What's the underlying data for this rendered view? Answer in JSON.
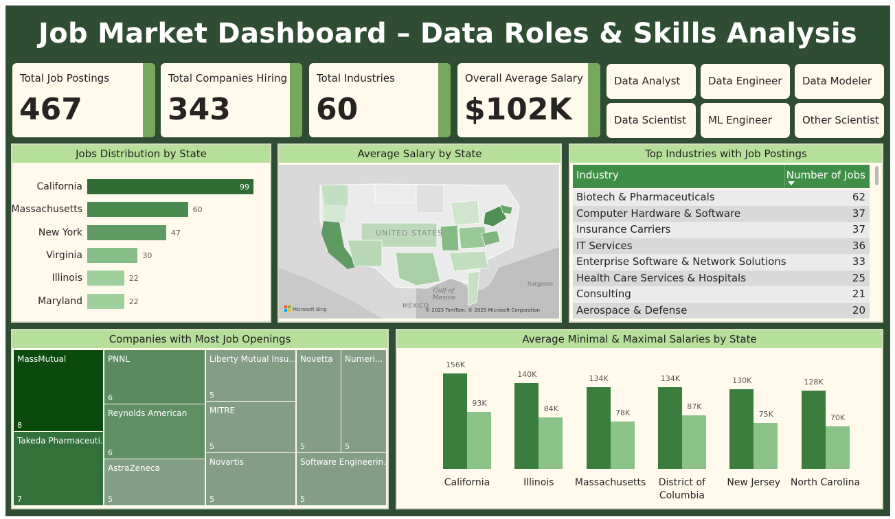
{
  "title": "Job Market Dashboard – Data Roles & Skills Analysis",
  "kpis": [
    {
      "label": "Total Job Postings",
      "value": "467"
    },
    {
      "label": "Total Companies Hiring",
      "value": "343"
    },
    {
      "label": "Total Industries",
      "value": "60"
    },
    {
      "label": "Overall Average Salary",
      "value": "$102K"
    }
  ],
  "slicers": [
    "Data Analyst",
    "Data Engineer",
    "Data Modeler",
    "Data Scientist",
    "ML Engineer",
    "Other Scientist"
  ],
  "colors": {
    "background": "#2e4d33",
    "panel": "#fffaec",
    "panel_header": "#b5df9b",
    "dark_green": "#3a7d3d",
    "light_green": "#8bc287"
  },
  "chart_data": [
    {
      "type": "bar",
      "orientation": "horizontal",
      "title": "Jobs Distribution by State",
      "categories": [
        "California",
        "Massachusetts",
        "New York",
        "Virginia",
        "Illinois",
        "Maryland"
      ],
      "values": [
        99,
        60,
        47,
        30,
        22,
        22
      ]
    },
    {
      "type": "map",
      "title": "Average Salary by State",
      "map_label": "UNITED STATES",
      "places": [
        "Gulf of\nMexico",
        "MEXICO",
        "Sargasso"
      ],
      "provider": "Microsoft Bing",
      "attribution": "© 2025 TomTom, © 2025 Microsoft Corporation"
    },
    {
      "type": "table",
      "title": "Top Industries with Job Postings",
      "columns": [
        "Industry",
        "Number of Jobs"
      ],
      "rows": [
        [
          "Biotech & Pharmaceuticals",
          "62"
        ],
        [
          "Computer Hardware & Software",
          "37"
        ],
        [
          "Insurance Carriers",
          "37"
        ],
        [
          "IT Services",
          "36"
        ],
        [
          "Enterprise Software & Network Solutions",
          "33"
        ],
        [
          "Health Care Services & Hospitals",
          "25"
        ],
        [
          "Consulting",
          "21"
        ],
        [
          "Aerospace & Defense",
          "20"
        ]
      ]
    },
    {
      "type": "treemap",
      "title": "Companies with Most Job Openings",
      "items": [
        {
          "name": "MassMutual",
          "value": 8
        },
        {
          "name": "Takeda Pharmaceuti...",
          "value": 7
        },
        {
          "name": "PNNL",
          "value": 6
        },
        {
          "name": "Reynolds American",
          "value": 6
        },
        {
          "name": "AstraZeneca",
          "value": 5
        },
        {
          "name": "Liberty Mutual Insu...",
          "value": 5
        },
        {
          "name": "MITRE",
          "value": 5
        },
        {
          "name": "Novartis",
          "value": 5
        },
        {
          "name": "Novetta",
          "value": 5
        },
        {
          "name": "Numeri...",
          "value": 5
        },
        {
          "name": "Software Engineerin...",
          "value": 5
        }
      ]
    },
    {
      "type": "bar",
      "title": "Average Minimal & Maximal Salaries by State",
      "categories": [
        "California",
        "Illinois",
        "Massachusetts",
        "District of Columbia",
        "New Jersey",
        "North Carolina"
      ],
      "series": [
        {
          "values": [
            156,
            140,
            134,
            134,
            130,
            128
          ],
          "labels": [
            "156K",
            "140K",
            "134K",
            "134K",
            "130K",
            "128K"
          ]
        },
        {
          "values": [
            93,
            84,
            78,
            87,
            75,
            70
          ],
          "labels": [
            "93K",
            "84K",
            "78K",
            "87K",
            "75K",
            "70K"
          ]
        }
      ],
      "ylim": [
        0,
        170
      ]
    }
  ]
}
